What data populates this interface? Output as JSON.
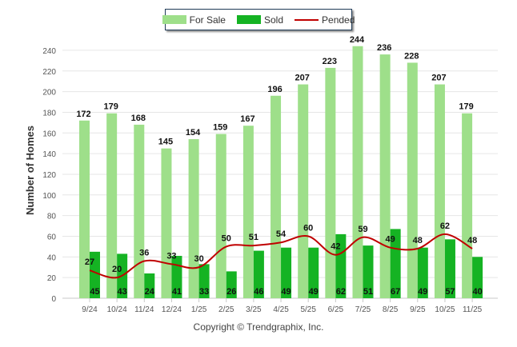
{
  "chart_data": {
    "type": "bar",
    "title": "",
    "xlabel": "",
    "ylabel": "Number of Homes",
    "ylim": [
      0,
      250
    ],
    "yticks": [
      0,
      20,
      40,
      60,
      80,
      100,
      120,
      140,
      160,
      180,
      200,
      220,
      240
    ],
    "categories": [
      "9/24",
      "10/24",
      "11/24",
      "12/24",
      "1/25",
      "2/25",
      "3/25",
      "4/25",
      "5/25",
      "6/25",
      "7/25",
      "8/25",
      "9/25",
      "10/25",
      "11/25"
    ],
    "series": [
      {
        "name": "For Sale",
        "type": "bar",
        "color": "#9edf8a",
        "values": [
          172,
          179,
          168,
          145,
          154,
          159,
          167,
          196,
          207,
          223,
          244,
          236,
          228,
          207,
          179
        ]
      },
      {
        "name": "Sold",
        "type": "bar",
        "color": "#15b323",
        "values": [
          45,
          43,
          24,
          41,
          33,
          26,
          46,
          49,
          49,
          62,
          51,
          67,
          49,
          57,
          40
        ]
      },
      {
        "name": "Pended",
        "type": "line",
        "color": "#c00000",
        "values": [
          27,
          20,
          36,
          33,
          30,
          50,
          51,
          54,
          60,
          42,
          59,
          49,
          48,
          62,
          48
        ]
      }
    ],
    "legend_position": "top-center",
    "grid": true
  },
  "footer": {
    "copyright": "Copyright © Trendgraphix, Inc."
  }
}
